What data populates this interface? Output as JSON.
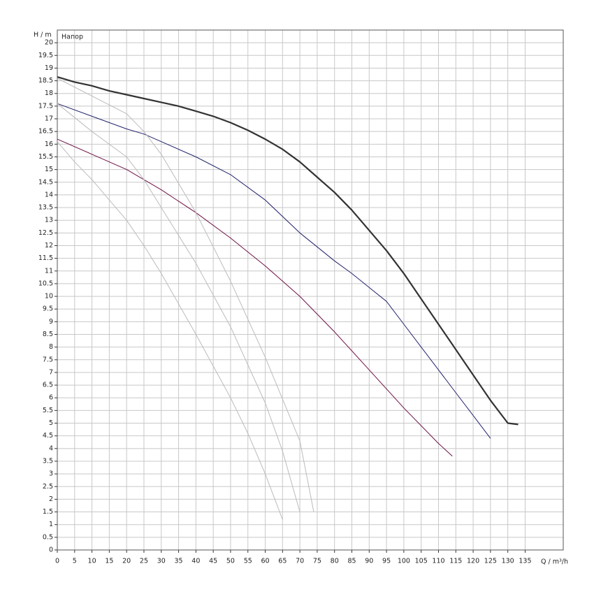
{
  "chart_data": {
    "type": "line",
    "series_label": "Напор",
    "y_label": "H / m",
    "x_label": "Q / m³/h",
    "xlim": [
      0,
      146
    ],
    "ylim": [
      0,
      20.5
    ],
    "xticks": [
      0,
      5,
      10,
      15,
      20,
      25,
      30,
      35,
      40,
      45,
      50,
      55,
      60,
      65,
      70,
      75,
      80,
      85,
      90,
      95,
      100,
      105,
      110,
      115,
      120,
      125,
      130,
      135
    ],
    "yticks": [
      0,
      0.5,
      1,
      1.5,
      2,
      2.5,
      3,
      3.5,
      4,
      4.5,
      5,
      5.5,
      6,
      6.5,
      7,
      7.5,
      8,
      8.5,
      9,
      9.5,
      10,
      10.5,
      11,
      11.5,
      12,
      12.5,
      13,
      13.5,
      14,
      14.5,
      15,
      15.5,
      16,
      16.5,
      17,
      17.5,
      18,
      18.5,
      19,
      19.5,
      20
    ],
    "grid": true,
    "series": [
      {
        "color": "#333333",
        "width": 2.2,
        "x": [
          0,
          5,
          10,
          15,
          20,
          25,
          30,
          35,
          40,
          45,
          50,
          55,
          60,
          65,
          70,
          75,
          80,
          85,
          90,
          95,
          100,
          105,
          110,
          115,
          120,
          125,
          130,
          133
        ],
        "values": [
          18.65,
          18.45,
          18.3,
          18.1,
          17.95,
          17.8,
          17.65,
          17.5,
          17.3,
          17.1,
          16.85,
          16.55,
          16.2,
          15.8,
          15.3,
          14.7,
          14.1,
          13.4,
          12.6,
          11.8,
          10.9,
          9.9,
          8.9,
          7.9,
          6.9,
          5.9,
          5.0,
          4.95
        ]
      },
      {
        "color": "#23236e",
        "width": 1,
        "x": [
          0,
          10,
          20,
          25,
          30,
          40,
          50,
          60,
          70,
          80,
          85,
          90,
          95,
          100,
          105,
          110,
          115,
          120,
          125
        ],
        "values": [
          17.6,
          17.1,
          16.6,
          16.4,
          16.1,
          15.5,
          14.8,
          13.8,
          12.5,
          11.4,
          10.9,
          10.35,
          9.8,
          8.9,
          8.0,
          7.1,
          6.2,
          5.3,
          4.4
        ]
      },
      {
        "color": "#6e1245",
        "width": 1,
        "x": [
          0,
          10,
          20,
          25,
          30,
          40,
          50,
          60,
          65,
          70,
          80,
          90,
          100,
          110,
          114
        ],
        "values": [
          16.2,
          15.6,
          15.0,
          14.6,
          14.2,
          13.3,
          12.3,
          11.2,
          10.6,
          10.0,
          8.6,
          7.1,
          5.6,
          4.2,
          3.7
        ]
      },
      {
        "color": "#bbbbbb",
        "width": 1,
        "x": [
          0,
          5,
          10,
          15,
          20,
          25,
          30,
          40,
          50,
          55,
          60,
          65
        ],
        "values": [
          16.1,
          15.3,
          14.6,
          13.8,
          13.0,
          12.0,
          10.9,
          8.5,
          6.0,
          4.6,
          3.0,
          1.2
        ]
      },
      {
        "color": "#bbbbbb",
        "width": 1,
        "x": [
          0,
          10,
          20,
          25,
          30,
          40,
          50,
          60,
          65,
          70
        ],
        "values": [
          17.6,
          16.5,
          15.5,
          14.6,
          13.5,
          11.3,
          8.8,
          5.8,
          3.9,
          1.5
        ]
      },
      {
        "color": "#bbbbbb",
        "width": 1,
        "x": [
          0,
          10,
          20,
          25,
          30,
          40,
          50,
          60,
          70,
          74
        ],
        "values": [
          18.6,
          17.9,
          17.2,
          16.5,
          15.6,
          13.3,
          10.6,
          7.6,
          4.3,
          1.5
        ]
      }
    ]
  }
}
